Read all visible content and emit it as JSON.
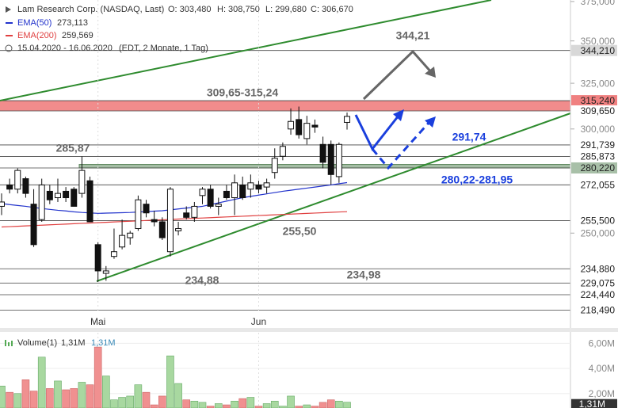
{
  "chart_data": [
    {
      "type": "candlestick",
      "title": "Lam Research Corp. (NASDAQ, Last)",
      "ohlc_labels": [
        "O: 303,480",
        "H: 308,750",
        "L: 299,680",
        "C: 306,670"
      ],
      "subtitle": "15.04.2020 - 16.06.2020",
      "note": "(EDT, 2 Monate, 1 Tag)",
      "categories": [
        null,
        null,
        null,
        null,
        null,
        null,
        null,
        null,
        null,
        null,
        null,
        null,
        "Mai",
        null,
        null,
        null,
        null,
        null,
        null,
        null,
        null,
        null,
        null,
        null,
        null,
        null,
        null,
        null,
        null,
        null,
        null,
        null,
        "Jun",
        null,
        null,
        null,
        null,
        null,
        null,
        null,
        null,
        null,
        null,
        null
      ],
      "open": [
        262,
        272,
        270,
        275,
        263,
        256,
        269,
        266,
        269,
        270,
        268,
        274,
        245,
        233,
        240,
        244,
        248,
        252,
        263,
        256,
        255,
        242,
        251,
        259,
        257,
        267,
        270,
        262,
        269,
        266,
        272,
        270,
        272,
        271,
        278,
        286,
        300,
        305,
        295,
        302,
        292,
        292,
        276,
        303.48
      ],
      "high": [
        268,
        275,
        280,
        276,
        270,
        275,
        272,
        275,
        271,
        271,
        286,
        276,
        246,
        236,
        252,
        256,
        251,
        267,
        265,
        260,
        257,
        271,
        255,
        262,
        264,
        271,
        272,
        266,
        272,
        277,
        276,
        277,
        274,
        275,
        290,
        293,
        311,
        312,
        307,
        305,
        296,
        294,
        293,
        308.75
      ],
      "low": [
        258,
        268,
        268,
        266,
        244,
        255,
        263,
        264,
        264,
        262,
        266,
        255,
        229.5,
        230,
        239,
        243,
        245,
        251,
        257,
        253,
        247,
        240,
        249,
        256,
        255,
        263,
        261,
        258,
        265,
        258,
        265,
        266,
        268,
        268,
        275,
        284,
        297,
        295,
        292,
        298,
        280,
        272,
        273,
        299.68
      ],
      "close": [
        264,
        270,
        279,
        268,
        245,
        272,
        265,
        268,
        266,
        262,
        279,
        255,
        234,
        234,
        242,
        249,
        250,
        265,
        259,
        255,
        248,
        270,
        252,
        257,
        262,
        270,
        262,
        263,
        266,
        273,
        266,
        273,
        270,
        273,
        285,
        291,
        304,
        297,
        303,
        301,
        283,
        277,
        292,
        306.67
      ],
      "up_color": "#ffffff",
      "down_color": "#111111",
      "series": [
        {
          "name": "EMA(50)",
          "value_label": "273,113",
          "color": "#2233cc",
          "values": [
            263.3,
            262.8,
            262.4,
            262,
            261.5,
            261,
            260.6,
            260.2,
            259.9,
            259.5,
            259.2,
            259,
            258.8,
            258.9,
            259,
            259.1,
            259.2,
            259.4,
            259.6,
            259.8,
            260,
            260.4,
            260.8,
            261.2,
            261.6,
            262,
            262.8,
            263.6,
            264.4,
            265.2,
            266,
            266.6,
            267.2,
            267.8,
            268.4,
            269,
            269.5,
            270,
            270.5,
            271,
            271.5,
            272,
            272.6,
            273.113
          ]
        },
        {
          "name": "EMA(200)",
          "value_label": "259,569",
          "color": "#e04040",
          "values": [
            252.7,
            252.86,
            253.02,
            253.18,
            253.34,
            253.5,
            253.66,
            253.82,
            253.98,
            254.14,
            254.3,
            254.46,
            254.62,
            254.78,
            254.94,
            255.1,
            255.26,
            255.42,
            255.58,
            255.74,
            255.9,
            256.06,
            256.22,
            256.38,
            256.54,
            256.7,
            256.86,
            257.02,
            257.18,
            257.34,
            257.5,
            257.66,
            257.82,
            257.98,
            258.14,
            258.3,
            258.46,
            258.62,
            258.78,
            258.94,
            259.1,
            259.26,
            259.42,
            259.569
          ]
        }
      ],
      "log_scale": true,
      "ylim": [
        218,
        376
      ],
      "yticks": [
        {
          "value": 375,
          "label": "375,000"
        },
        {
          "value": 350,
          "label": "350,000"
        },
        {
          "value": 325,
          "label": "325,000"
        },
        {
          "value": 300,
          "label": "300,000"
        },
        {
          "value": 250,
          "label": "250,000"
        }
      ],
      "levels": [
        {
          "value": 344.21,
          "label": "344,210",
          "bg": "#d8d8d8"
        },
        {
          "value": 315.24,
          "label": "315,240",
          "bg": "#f08080"
        },
        {
          "value": 309.65,
          "label": "309,650",
          "bg": "#ffffff"
        },
        {
          "value": 291.739,
          "label": "291,739",
          "bg": "#ffffff"
        },
        {
          "value": 285.873,
          "label": "285,873",
          "bg": "#ffffff"
        },
        {
          "value": 280.22,
          "label": "280,220",
          "bg": "#a8c0a8"
        },
        {
          "value": 272.055,
          "label": "272,055",
          "bg": "#ffffff"
        },
        {
          "value": 255.5,
          "label": "255,500",
          "bg": "#ffffff"
        },
        {
          "value": 234.88,
          "label": "234,880",
          "bg": "#ffffff"
        },
        {
          "value": 229.075,
          "label": "229,075",
          "bg": "#ffffff"
        },
        {
          "value": 224.44,
          "label": "224,440",
          "bg": "#ffffff"
        },
        {
          "value": 218.49,
          "label": "218,490",
          "bg": "#ffffff"
        }
      ],
      "zones": [
        {
          "from": 309.65,
          "to": 315.24,
          "color": "#f08080"
        },
        {
          "from": 280.22,
          "to": 281.95,
          "color": "#9cb89c"
        }
      ],
      "annotations": [
        "344,21",
        "309,65-315,24",
        "285,87",
        "291,74",
        "280,22-281,95",
        "255,50",
        "234,88",
        "234,98"
      ]
    },
    {
      "type": "bar",
      "title": "Volume(1)",
      "legend_values": [
        "1,31M",
        "1,31M"
      ],
      "values": [
        2.6,
        2.1,
        2.0,
        3.1,
        2.2,
        4.9,
        2.4,
        3.0,
        2.3,
        2.4,
        2.9,
        2.7,
        5.7,
        3.4,
        1.5,
        1.7,
        1.8,
        2.7,
        2.1,
        1.1,
        1.8,
        5.0,
        2.8,
        1.5,
        1.4,
        1.3,
        1.0,
        1.2,
        1.1,
        1.4,
        1.6,
        1.7,
        1.0,
        1.2,
        1.4,
        1.0,
        1.8,
        1.0,
        1.1,
        1.0,
        1.3,
        1.5,
        1.4,
        1.31
      ],
      "value_label": "1,31M",
      "up_color": "#a8d8a0",
      "down_color": "#f09090",
      "ylim": [
        0.85,
        6.84
      ],
      "yticks": [
        {
          "value": 6,
          "label": "6,00M"
        },
        {
          "value": 4,
          "label": "4,00M"
        },
        {
          "value": 2,
          "label": "2,00M"
        }
      ]
    }
  ]
}
